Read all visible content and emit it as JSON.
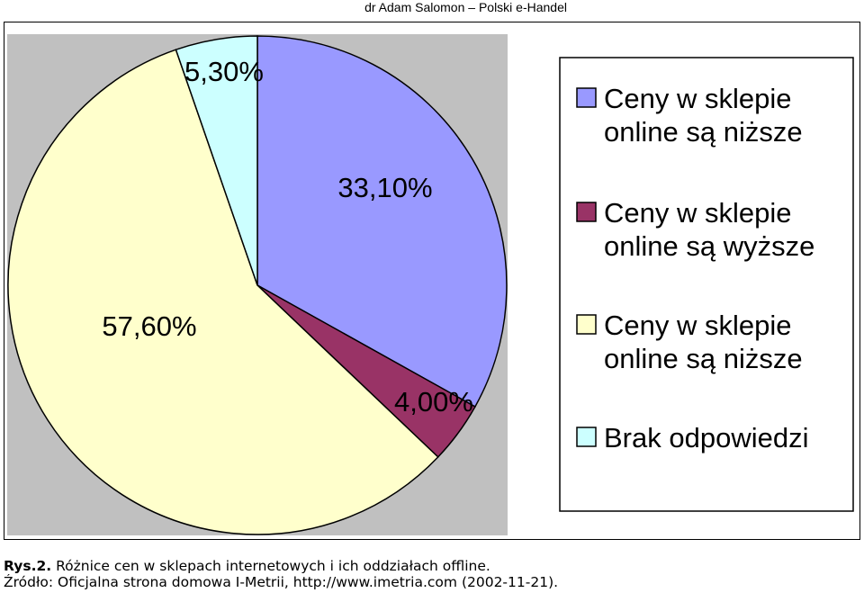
{
  "header": "dr Adam Salomon – Polski e-Handel",
  "colors": {
    "plot_area": "#c0c0c0",
    "slice_1": "#9999ff",
    "slice_2": "#993366",
    "slice_3": "#ffffcc",
    "slice_4": "#ccffff",
    "stroke": "#000000"
  },
  "chart_data": {
    "type": "pie",
    "categories": [
      "Ceny w sklepie online są niższe",
      "Ceny w sklepie online są wyższe",
      "Ceny w sklepie online są niższe",
      "Brak odpowiedzi"
    ],
    "values": [
      33.1,
      4.0,
      57.6,
      5.3
    ],
    "data_labels": [
      "33,10%",
      "4,00%",
      "57,60%",
      "5,30%"
    ],
    "legend": {
      "placement": "right",
      "entries": [
        [
          "Ceny w sklepie",
          "online są niższe"
        ],
        [
          "Ceny w sklepie",
          "online są wyższe"
        ],
        [
          "Ceny w sklepie",
          "online są niższe"
        ],
        [
          "Brak odpowiedzi"
        ]
      ]
    }
  },
  "caption": {
    "prefix": "Rys.2.",
    "line1": " Różnice cen w sklepach internetowych i ich oddziałach offline.",
    "line2": "Źródło: Oficjalna strona domowa I-Metrii, http://www.imetria.com (2002-11-21)."
  }
}
